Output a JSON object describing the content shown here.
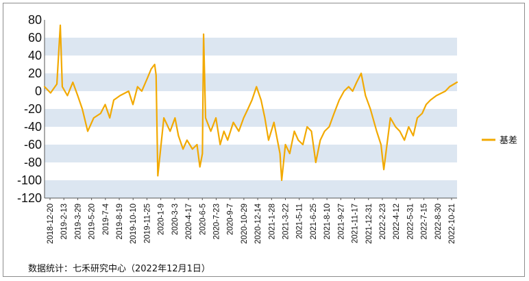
{
  "chart_data": {
    "type": "line",
    "title": "",
    "xlabel": "",
    "ylabel": "",
    "ylim": [
      -120,
      80
    ],
    "yticks": [
      80,
      60,
      40,
      20,
      0,
      -20,
      -40,
      -60,
      -80,
      -100,
      -120
    ],
    "grid": "alternating horizontal bands",
    "legend_position": "right",
    "x_tick_labels": [
      "2018-12-20",
      "2019-2-13",
      "2019-3-29",
      "2019-5-20",
      "2019-7-4",
      "2019-8-19",
      "2019-10-10",
      "2019-11-25",
      "2020-1-9",
      "2020-3-3",
      "2020-4-17",
      "2020-6-5",
      "2020-7-23",
      "2020-9-7",
      "2020-10-29",
      "2020-12-14",
      "2021-1-28",
      "2021-3-22",
      "2021-5-11",
      "2021-6-25",
      "2021-8-10",
      "2021-9-27",
      "2021-11-17",
      "2021-12-31",
      "2022-2-23",
      "2022-4-12",
      "2022-5-31",
      "2022-7-15",
      "2022-8-30",
      "2022-10-21"
    ],
    "series": [
      {
        "name": "基差",
        "color": "#F2A900",
        "x": [
          "2018-12-20",
          "2019-1-10",
          "2019-2-1",
          "2019-2-13",
          "2019-2-20",
          "2019-3-10",
          "2019-3-29",
          "2019-4-15",
          "2019-5-1",
          "2019-5-20",
          "2019-6-10",
          "2019-7-4",
          "2019-7-20",
          "2019-8-5",
          "2019-8-19",
          "2019-9-10",
          "2019-10-10",
          "2019-10-25",
          "2019-11-10",
          "2019-11-25",
          "2019-12-15",
          "2019-12-28",
          "2020-1-9",
          "2020-1-14",
          "2020-1-20",
          "2020-2-10",
          "2020-3-3",
          "2020-3-20",
          "2020-4-1",
          "2020-4-17",
          "2020-5-1",
          "2020-5-20",
          "2020-6-5",
          "2020-6-15",
          "2020-6-24",
          "2020-6-28",
          "2020-7-5",
          "2020-7-23",
          "2020-8-10",
          "2020-8-25",
          "2020-9-7",
          "2020-9-20",
          "2020-10-10",
          "2020-10-29",
          "2020-11-15",
          "2020-11-30",
          "2020-12-14",
          "2020-12-30",
          "2021-1-15",
          "2021-1-28",
          "2021-2-10",
          "2021-3-1",
          "2021-3-22",
          "2021-3-28",
          "2021-4-10",
          "2021-4-25",
          "2021-5-11",
          "2021-5-25",
          "2021-6-10",
          "2021-6-25",
          "2021-7-10",
          "2021-7-25",
          "2021-8-10",
          "2021-8-25",
          "2021-9-10",
          "2021-9-27",
          "2021-10-15",
          "2021-11-1",
          "2021-11-17",
          "2021-12-1",
          "2021-12-15",
          "2021-12-31",
          "2022-1-15",
          "2022-2-1",
          "2022-2-23",
          "2022-3-10",
          "2022-3-20",
          "2022-4-12",
          "2022-4-30",
          "2022-5-15",
          "2022-5-31",
          "2022-6-15",
          "2022-7-1",
          "2022-7-15",
          "2022-8-1",
          "2022-8-15",
          "2022-8-30",
          "2022-9-20",
          "2022-10-21",
          "2022-11-5",
          "2022-12-1"
        ],
        "values": [
          5,
          -2,
          8,
          74,
          5,
          -5,
          10,
          -5,
          -20,
          -45,
          -30,
          -25,
          -15,
          -30,
          -10,
          -5,
          0,
          -15,
          5,
          0,
          15,
          25,
          30,
          18,
          -95,
          -30,
          -45,
          -30,
          -50,
          -65,
          -55,
          -65,
          -60,
          -85,
          -70,
          64,
          -30,
          -45,
          -30,
          -60,
          -45,
          -55,
          -35,
          -45,
          -30,
          -20,
          -10,
          5,
          -10,
          -30,
          -55,
          -35,
          -70,
          -100,
          -60,
          -70,
          -45,
          -55,
          -60,
          -40,
          -45,
          -80,
          -55,
          -45,
          -40,
          -25,
          -10,
          0,
          5,
          0,
          10,
          20,
          -5,
          -20,
          -45,
          -60,
          -88,
          -30,
          -40,
          -45,
          -55,
          -40,
          -50,
          -30,
          -25,
          -15,
          -10,
          -5,
          0,
          5,
          10
        ]
      }
    ]
  },
  "source_note": "数据统计：七禾研究中心（2022年12月1日）"
}
